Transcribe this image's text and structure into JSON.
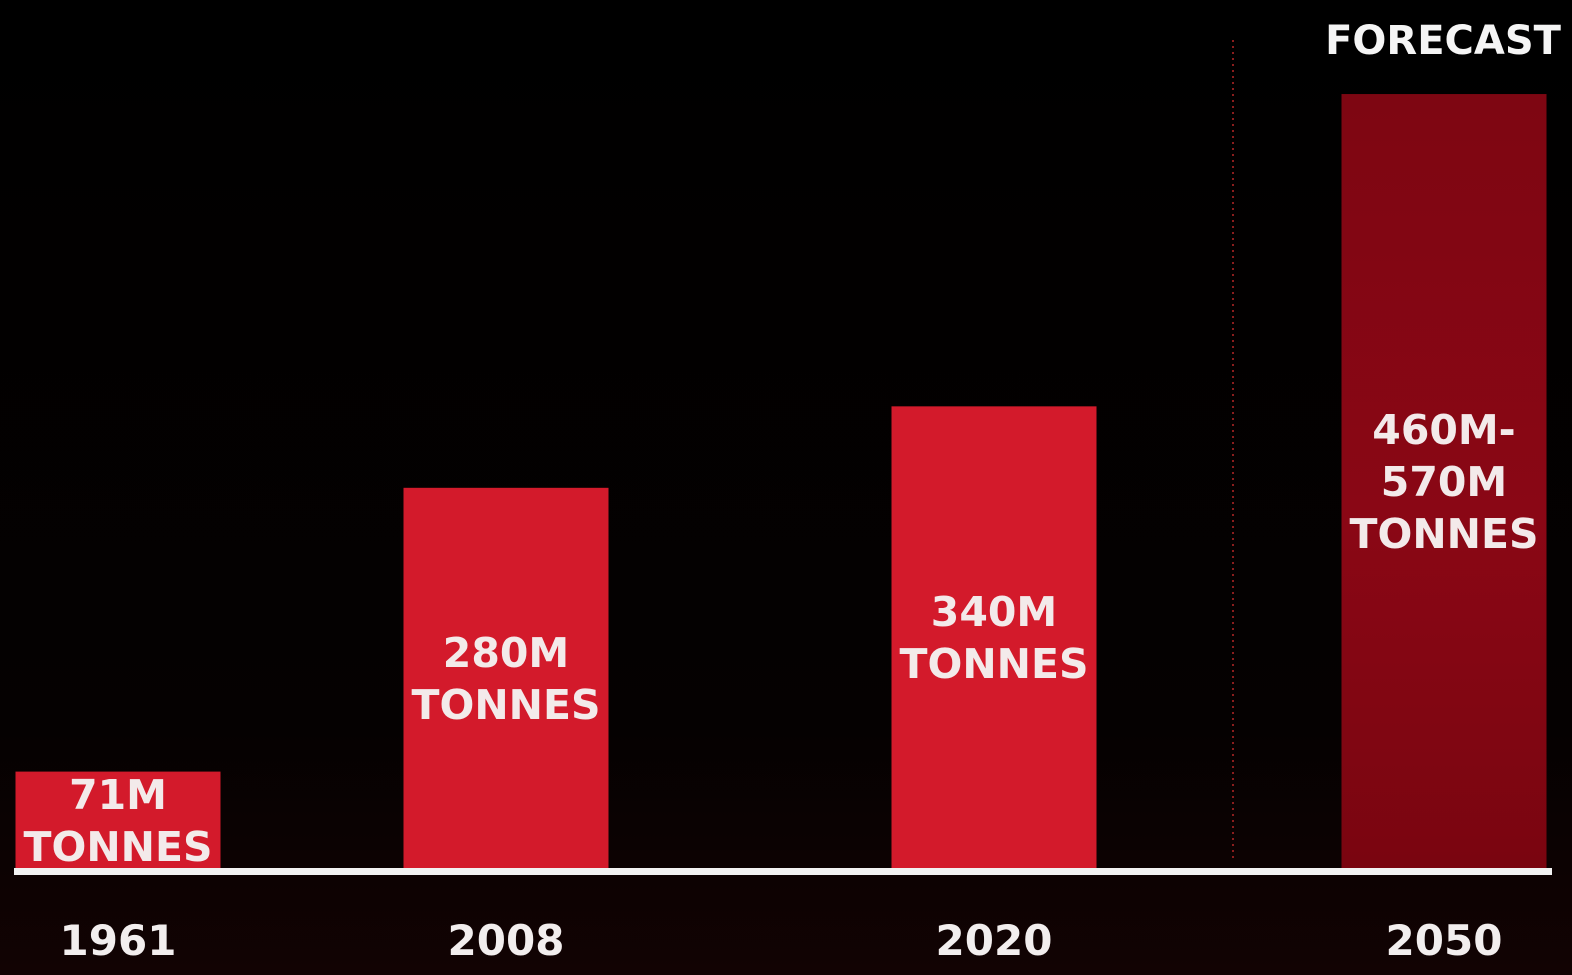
{
  "chart_data": {
    "type": "bar",
    "categories": [
      "1961",
      "2008",
      "2020",
      "2050"
    ],
    "values": [
      71,
      280,
      340,
      [
        460,
        570
      ]
    ],
    "unit": "M TONNES",
    "data_labels": [
      [
        "71M",
        "TONNES"
      ],
      [
        "280M",
        "TONNES"
      ],
      [
        "340M",
        "TONNES"
      ],
      [
        "460M-",
        "570M",
        "TONNES"
      ]
    ],
    "forecast_label": "FORECAST",
    "forecast_categories": [
      "2050"
    ],
    "ylim": [
      0,
      570
    ],
    "grid": false,
    "legend": "none"
  },
  "colors": {
    "background": "#000000",
    "bar": "#d31a2b",
    "forecast_bar_top": "#7e0612",
    "forecast_bar_mid": "#8a0715",
    "forecast_bar_bottom": "#7a0510",
    "baseline": "#f2f2f2",
    "divider": "#8a1d1d",
    "label": "#f3eaea"
  }
}
